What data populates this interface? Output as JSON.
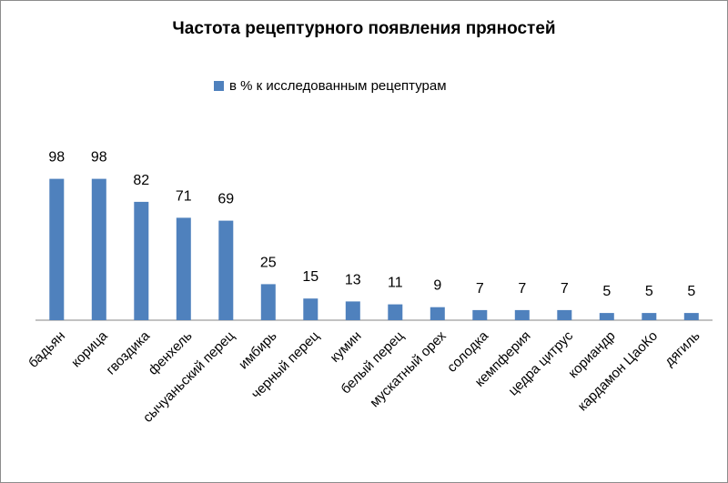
{
  "chart_data": {
    "type": "bar",
    "title": "Частота рецептурного появления пряностей",
    "legend_position": "top",
    "grid": false,
    "ylim": [
      0,
      100
    ],
    "categories": [
      "бадьян",
      "корица",
      "гвоздика",
      "фенхель",
      "сычуаньский перец",
      "имбирь",
      "черный перец",
      "кумин",
      "белый перец",
      "мускатный орех",
      "солодка",
      "кемпферия",
      "цедра цитрус",
      "кориандр",
      "кардамон ЦаоКо",
      "дягиль"
    ],
    "series": [
      {
        "name": "в % к исследованным рецептурам",
        "values": [
          98,
          98,
          82,
          71,
          69,
          25,
          15,
          13,
          11,
          9,
          7,
          7,
          7,
          5,
          5,
          5
        ]
      }
    ],
    "bar_color": "#4f81bd",
    "axis_color": "#868686"
  }
}
